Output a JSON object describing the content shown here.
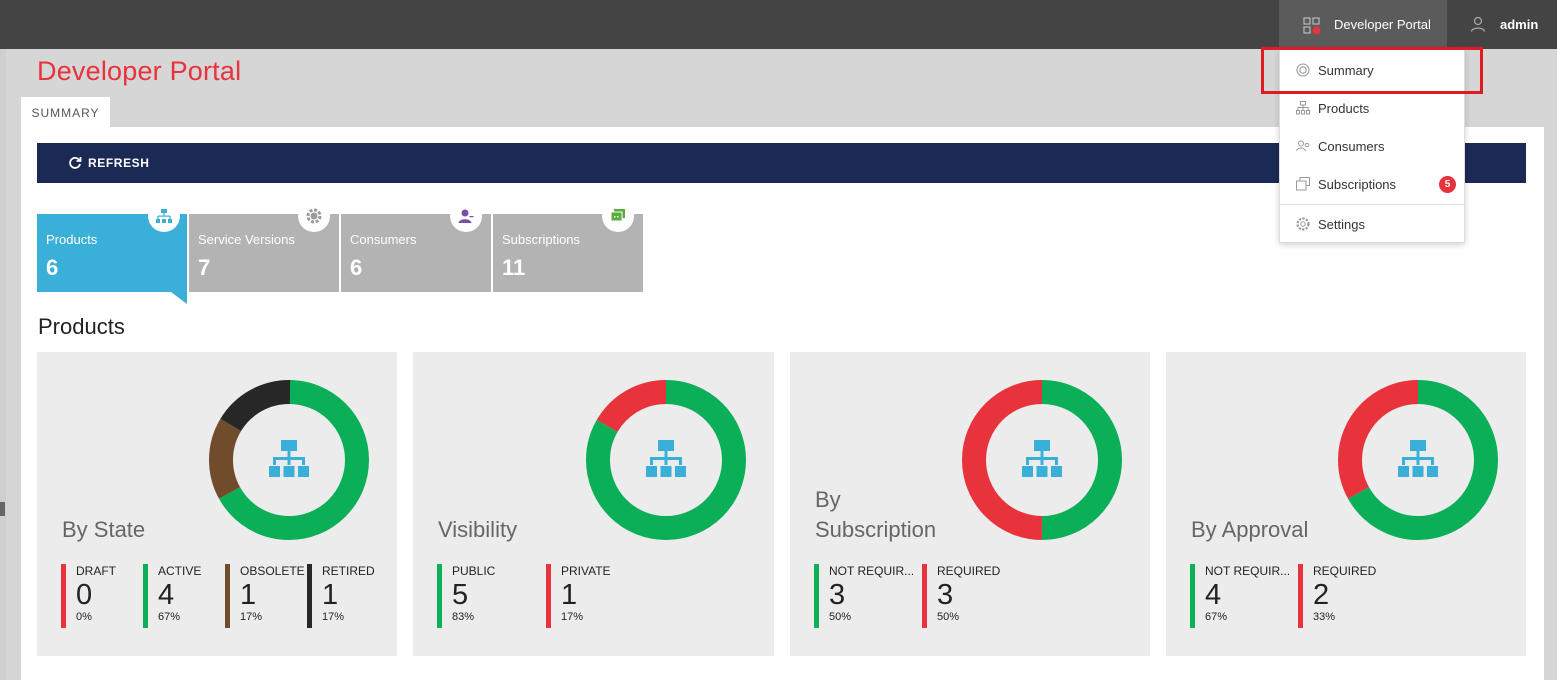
{
  "topbar": {
    "portal_label": "Developer Portal",
    "user_label": "admin"
  },
  "page": {
    "title": "Developer Portal",
    "tab": "SUMMARY",
    "refresh_label": "REFRESH"
  },
  "colors": {
    "brand_red": "#e8323c",
    "navy": "#1b2a55",
    "tile_active": "#3ab0d8",
    "tile_inactive": "#b3b3b3",
    "green": "#0aaf58",
    "red": "#e8323c",
    "brown": "#704c2c",
    "black": "#272727",
    "icon_blue": "#3ab0d8"
  },
  "tiles": [
    {
      "label": "Products",
      "value": "6",
      "icon": "sitemap-icon"
    },
    {
      "label": "Service Versions",
      "value": "7",
      "icon": "gear-icon"
    },
    {
      "label": "Consumers",
      "value": "6",
      "icon": "user-icon"
    },
    {
      "label": "Subscriptions",
      "value": "11",
      "icon": "chat-icon"
    }
  ],
  "section_title": "Products",
  "cards": [
    {
      "title": "By State",
      "chart_icon": "sitemap-icon",
      "stats": [
        {
          "label": "DRAFT",
          "value": "0",
          "percent": "0%",
          "color": "#e8323c"
        },
        {
          "label": "ACTIVE",
          "value": "4",
          "percent": "67%",
          "color": "#0aaf58"
        },
        {
          "label": "OBSOLETE",
          "value": "1",
          "percent": "17%",
          "color": "#704c2c"
        },
        {
          "label": "RETIRED",
          "value": "1",
          "percent": "17%",
          "color": "#272727"
        }
      ]
    },
    {
      "title": "Visibility",
      "chart_icon": "sitemap-icon",
      "stats": [
        {
          "label": "PUBLIC",
          "value": "5",
          "percent": "83%",
          "color": "#0aaf58"
        },
        {
          "label": "PRIVATE",
          "value": "1",
          "percent": "17%",
          "color": "#e8323c"
        }
      ]
    },
    {
      "title": "By Subscription",
      "title_line1": "By",
      "title_line2": "Subscription",
      "chart_icon": "sitemap-icon",
      "stats": [
        {
          "label": "NOT REQUIR...",
          "value": "3",
          "percent": "50%",
          "color": "#0aaf58"
        },
        {
          "label": "REQUIRED",
          "value": "3",
          "percent": "50%",
          "color": "#e8323c"
        }
      ]
    },
    {
      "title": "By Approval",
      "chart_icon": "sitemap-icon",
      "stats": [
        {
          "label": "NOT REQUIR...",
          "value": "4",
          "percent": "67%",
          "color": "#0aaf58"
        },
        {
          "label": "REQUIRED",
          "value": "2",
          "percent": "33%",
          "color": "#e8323c"
        }
      ]
    }
  ],
  "dropdown": {
    "items": [
      {
        "label": "Summary",
        "icon": "summary-icon"
      },
      {
        "label": "Products",
        "icon": "sitemap-icon"
      },
      {
        "label": "Consumers",
        "icon": "users-icon"
      },
      {
        "label": "Subscriptions",
        "icon": "subscriptions-icon",
        "badge": "5"
      },
      {
        "label": "Settings",
        "icon": "gear-icon"
      }
    ]
  }
}
